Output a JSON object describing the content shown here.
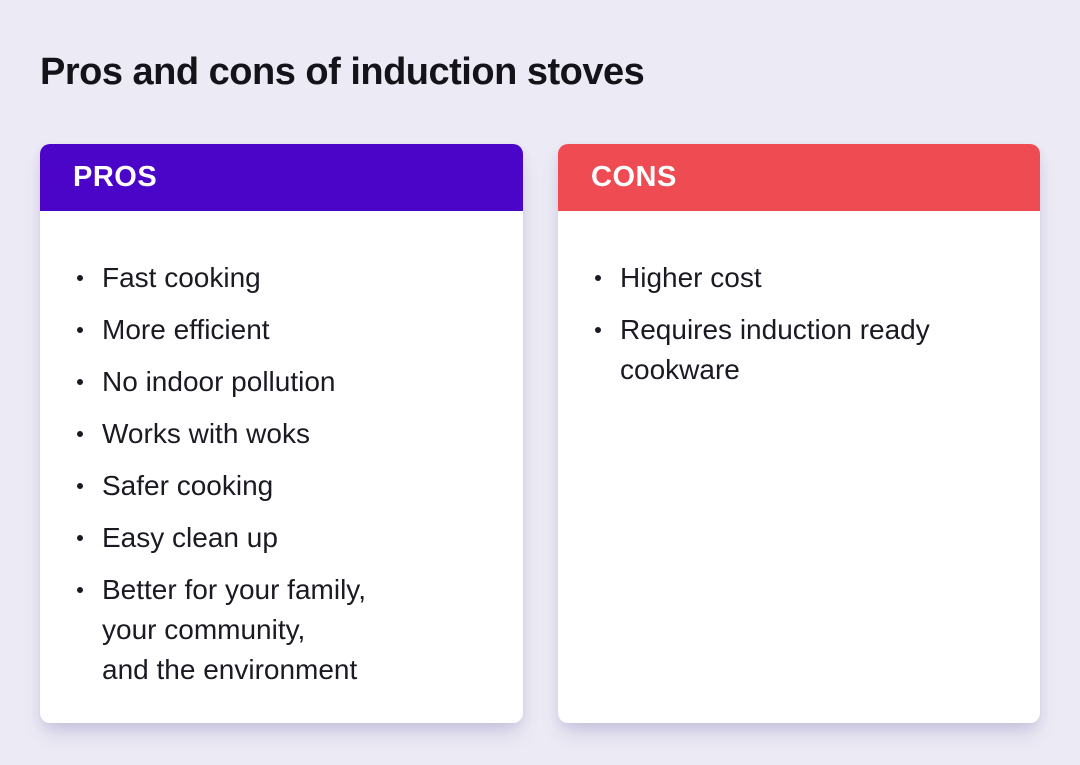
{
  "page": {
    "background_color": "#ECEAF4",
    "title": "Pros and cons of induction stoves"
  },
  "colors": {
    "pros_header": "#4A05C8",
    "cons_header": "#EE4B52",
    "card_background": "#FFFFFF",
    "text": "#1B1922"
  },
  "cards": [
    {
      "id": "pros",
      "header": "PROS",
      "header_color": "#4A05C8",
      "items": [
        [
          "Fast cooking"
        ],
        [
          "More efficient"
        ],
        [
          "No indoor pollution"
        ],
        [
          "Works with woks"
        ],
        [
          "Safer cooking"
        ],
        [
          "Easy clean up"
        ],
        [
          "Better for your family,",
          "your community,",
          "and the environment"
        ]
      ]
    },
    {
      "id": "cons",
      "header": "CONS",
      "header_color": "#EE4B52",
      "items": [
        [
          "Higher cost"
        ],
        [
          "Requires induction ready",
          "cookware"
        ]
      ]
    }
  ]
}
